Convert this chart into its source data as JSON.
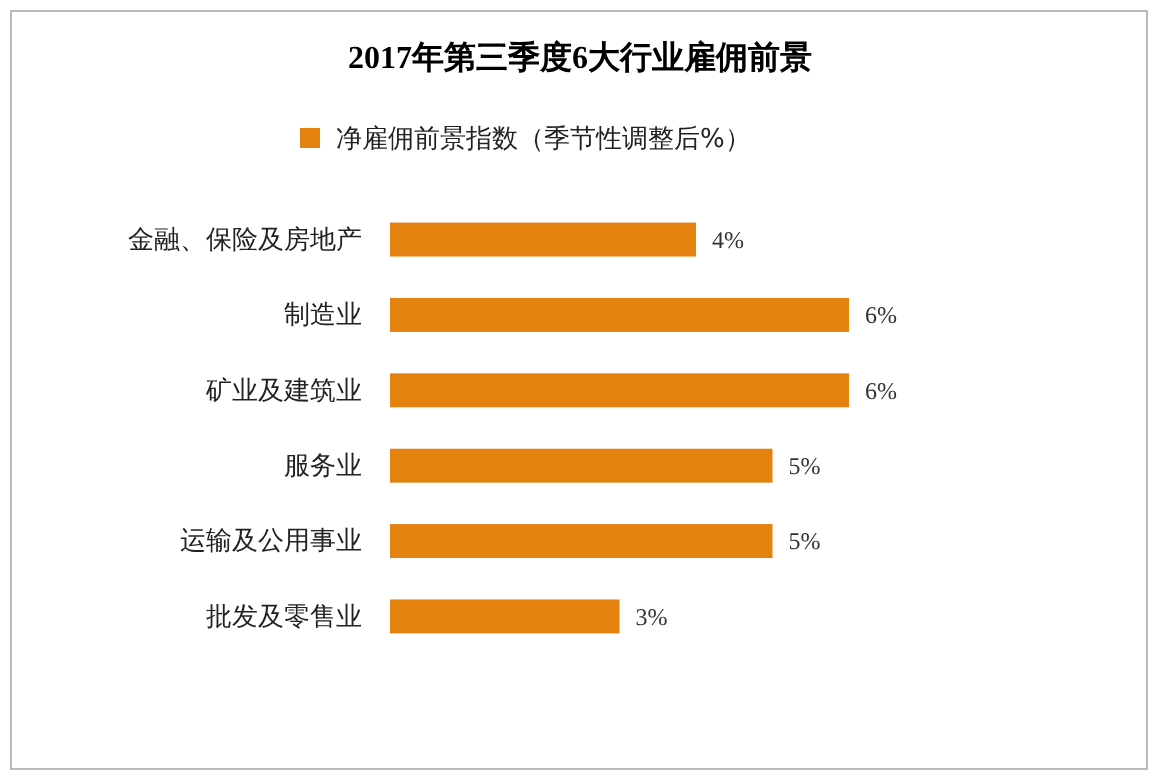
{
  "chart_data": {
    "type": "bar",
    "orientation": "horizontal",
    "title": "2017年第三季度6大行业雇佣前景",
    "categories": [
      "金融、保险及房地产",
      "制造业",
      "矿业及建筑业",
      "服务业",
      "运输及公用事业",
      "批发及零售业"
    ],
    "series": [
      {
        "name": "净雇佣前景指数（季节性调整后%）",
        "color": "#e3820f",
        "values": [
          4,
          6,
          6,
          5,
          5,
          3
        ],
        "value_labels": [
          "4%",
          "6%",
          "6%",
          "5%",
          "5%",
          "3%"
        ]
      }
    ],
    "tick_labels": "y",
    "legend": "top",
    "grid": false
  }
}
